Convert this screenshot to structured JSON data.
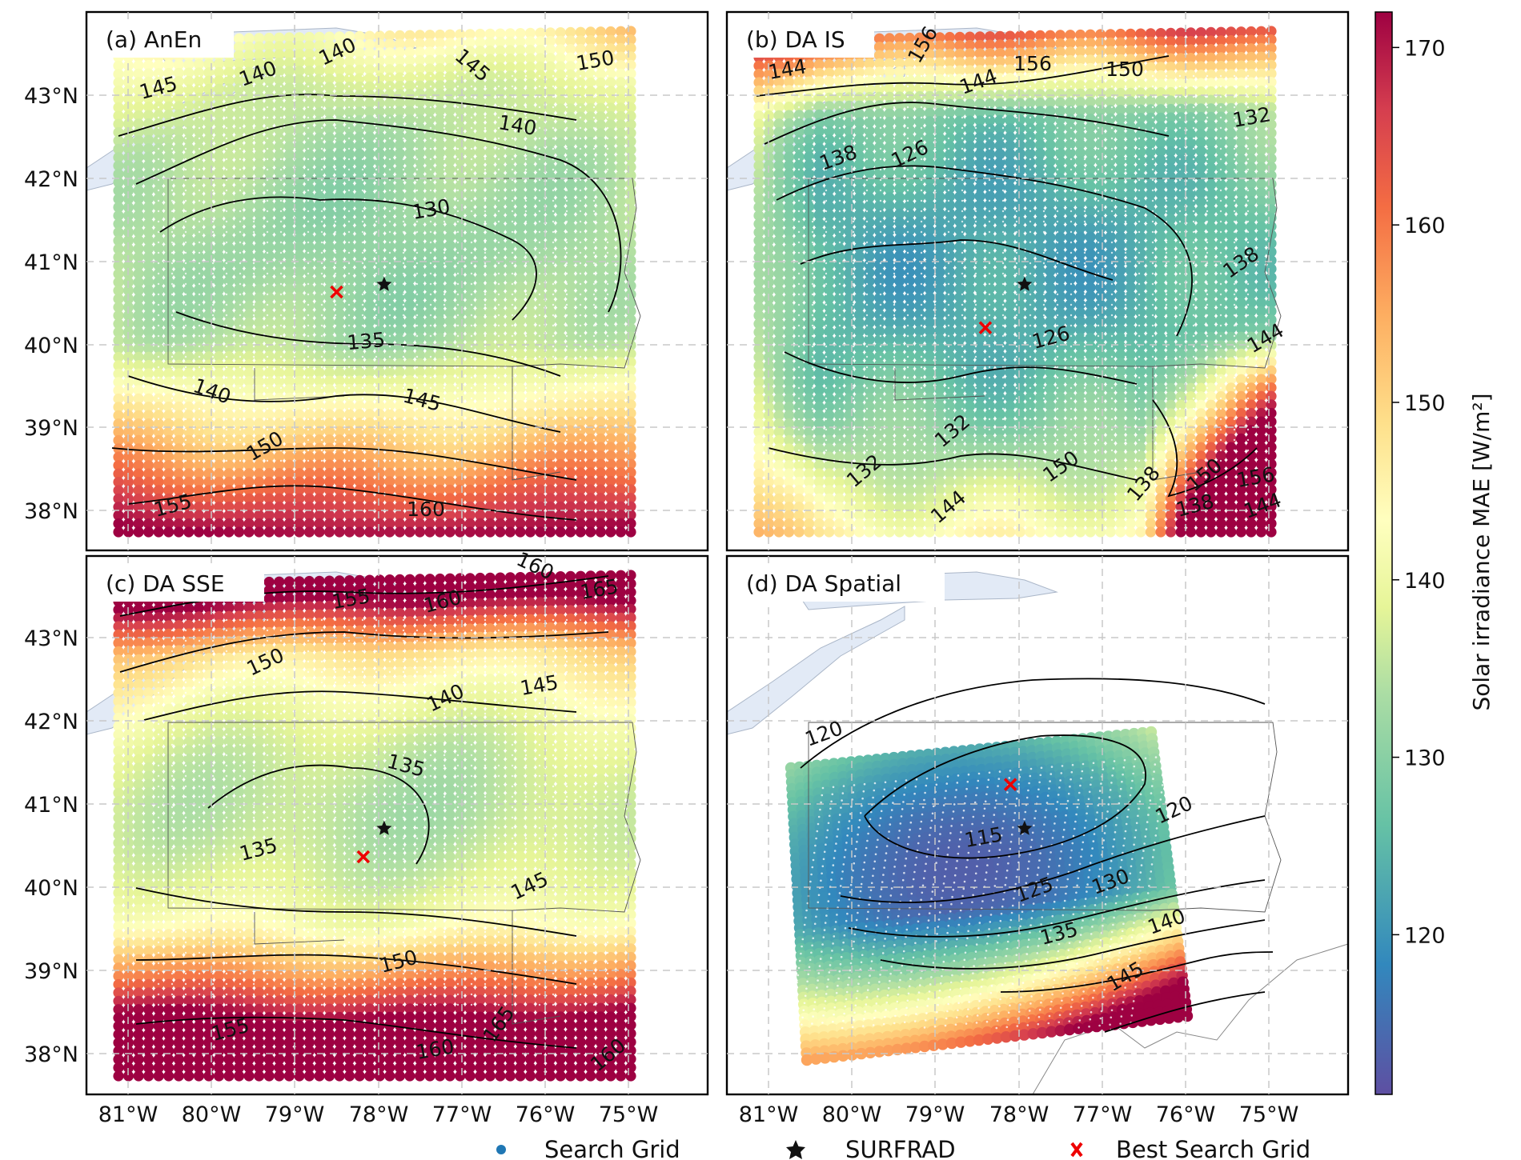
{
  "figure": {
    "colorbar": {
      "label": "Solar irradiance MAE [W/m²]",
      "ticks": [
        120,
        130,
        140,
        150,
        160,
        170
      ],
      "range": [
        111,
        172
      ],
      "colormap": [
        "#5e4fa2",
        "#3288bd",
        "#66c2a5",
        "#abdda4",
        "#e6f598",
        "#ffffbf",
        "#fee08b",
        "#fdae61",
        "#f46d43",
        "#d53e4f",
        "#9e0142"
      ]
    },
    "axes": {
      "lat_ticks": [
        "43°N",
        "42°N",
        "41°N",
        "40°N",
        "39°N",
        "38°N"
      ],
      "lon_ticks": [
        "81°W",
        "80°W",
        "79°W",
        "78°W",
        "77°W",
        "76°W",
        "75°W"
      ]
    },
    "legend": {
      "search_grid": "Search Grid",
      "surfrad": "SURFRAD",
      "best": "Best Search Grid"
    },
    "panels": [
      {
        "id": "a",
        "title": "(a) AnEn",
        "contour_labels": [
          "145",
          "140",
          "140",
          "145",
          "150",
          "140",
          "130",
          "135",
          "140",
          "145",
          "150",
          "155",
          "160"
        ],
        "surfrad": {
          "lon": -77.93,
          "lat": 40.72
        },
        "best": {
          "lon": -78.5,
          "lat": 40.63
        }
      },
      {
        "id": "b",
        "title": "(b) DA IS",
        "contour_labels": [
          "144",
          "156",
          "156",
          "150",
          "144",
          "132",
          "138",
          "126",
          "138",
          "126",
          "144",
          "132",
          "132",
          "150",
          "138",
          "150",
          "156",
          "138",
          "144",
          "144"
        ],
        "surfrad": {
          "lon": -77.93,
          "lat": 40.72
        },
        "best": {
          "lon": -78.4,
          "lat": 40.2
        }
      },
      {
        "id": "c",
        "title": "(c) DA SSE",
        "contour_labels": [
          "160",
          "165",
          "155",
          "160",
          "150",
          "145",
          "140",
          "135",
          "135",
          "145",
          "150",
          "155",
          "160",
          "165",
          "160"
        ],
        "surfrad": {
          "lon": -77.93,
          "lat": 40.72
        },
        "best": {
          "lon": -78.18,
          "lat": 40.38
        }
      },
      {
        "id": "d",
        "title": "(d) DA Spatial",
        "contour_labels": [
          "120",
          "115",
          "120",
          "125",
          "130",
          "135",
          "140",
          "145"
        ],
        "surfrad": {
          "lon": -77.93,
          "lat": 40.72
        },
        "best": {
          "lon": -78.1,
          "lat": 41.25
        }
      }
    ]
  }
}
